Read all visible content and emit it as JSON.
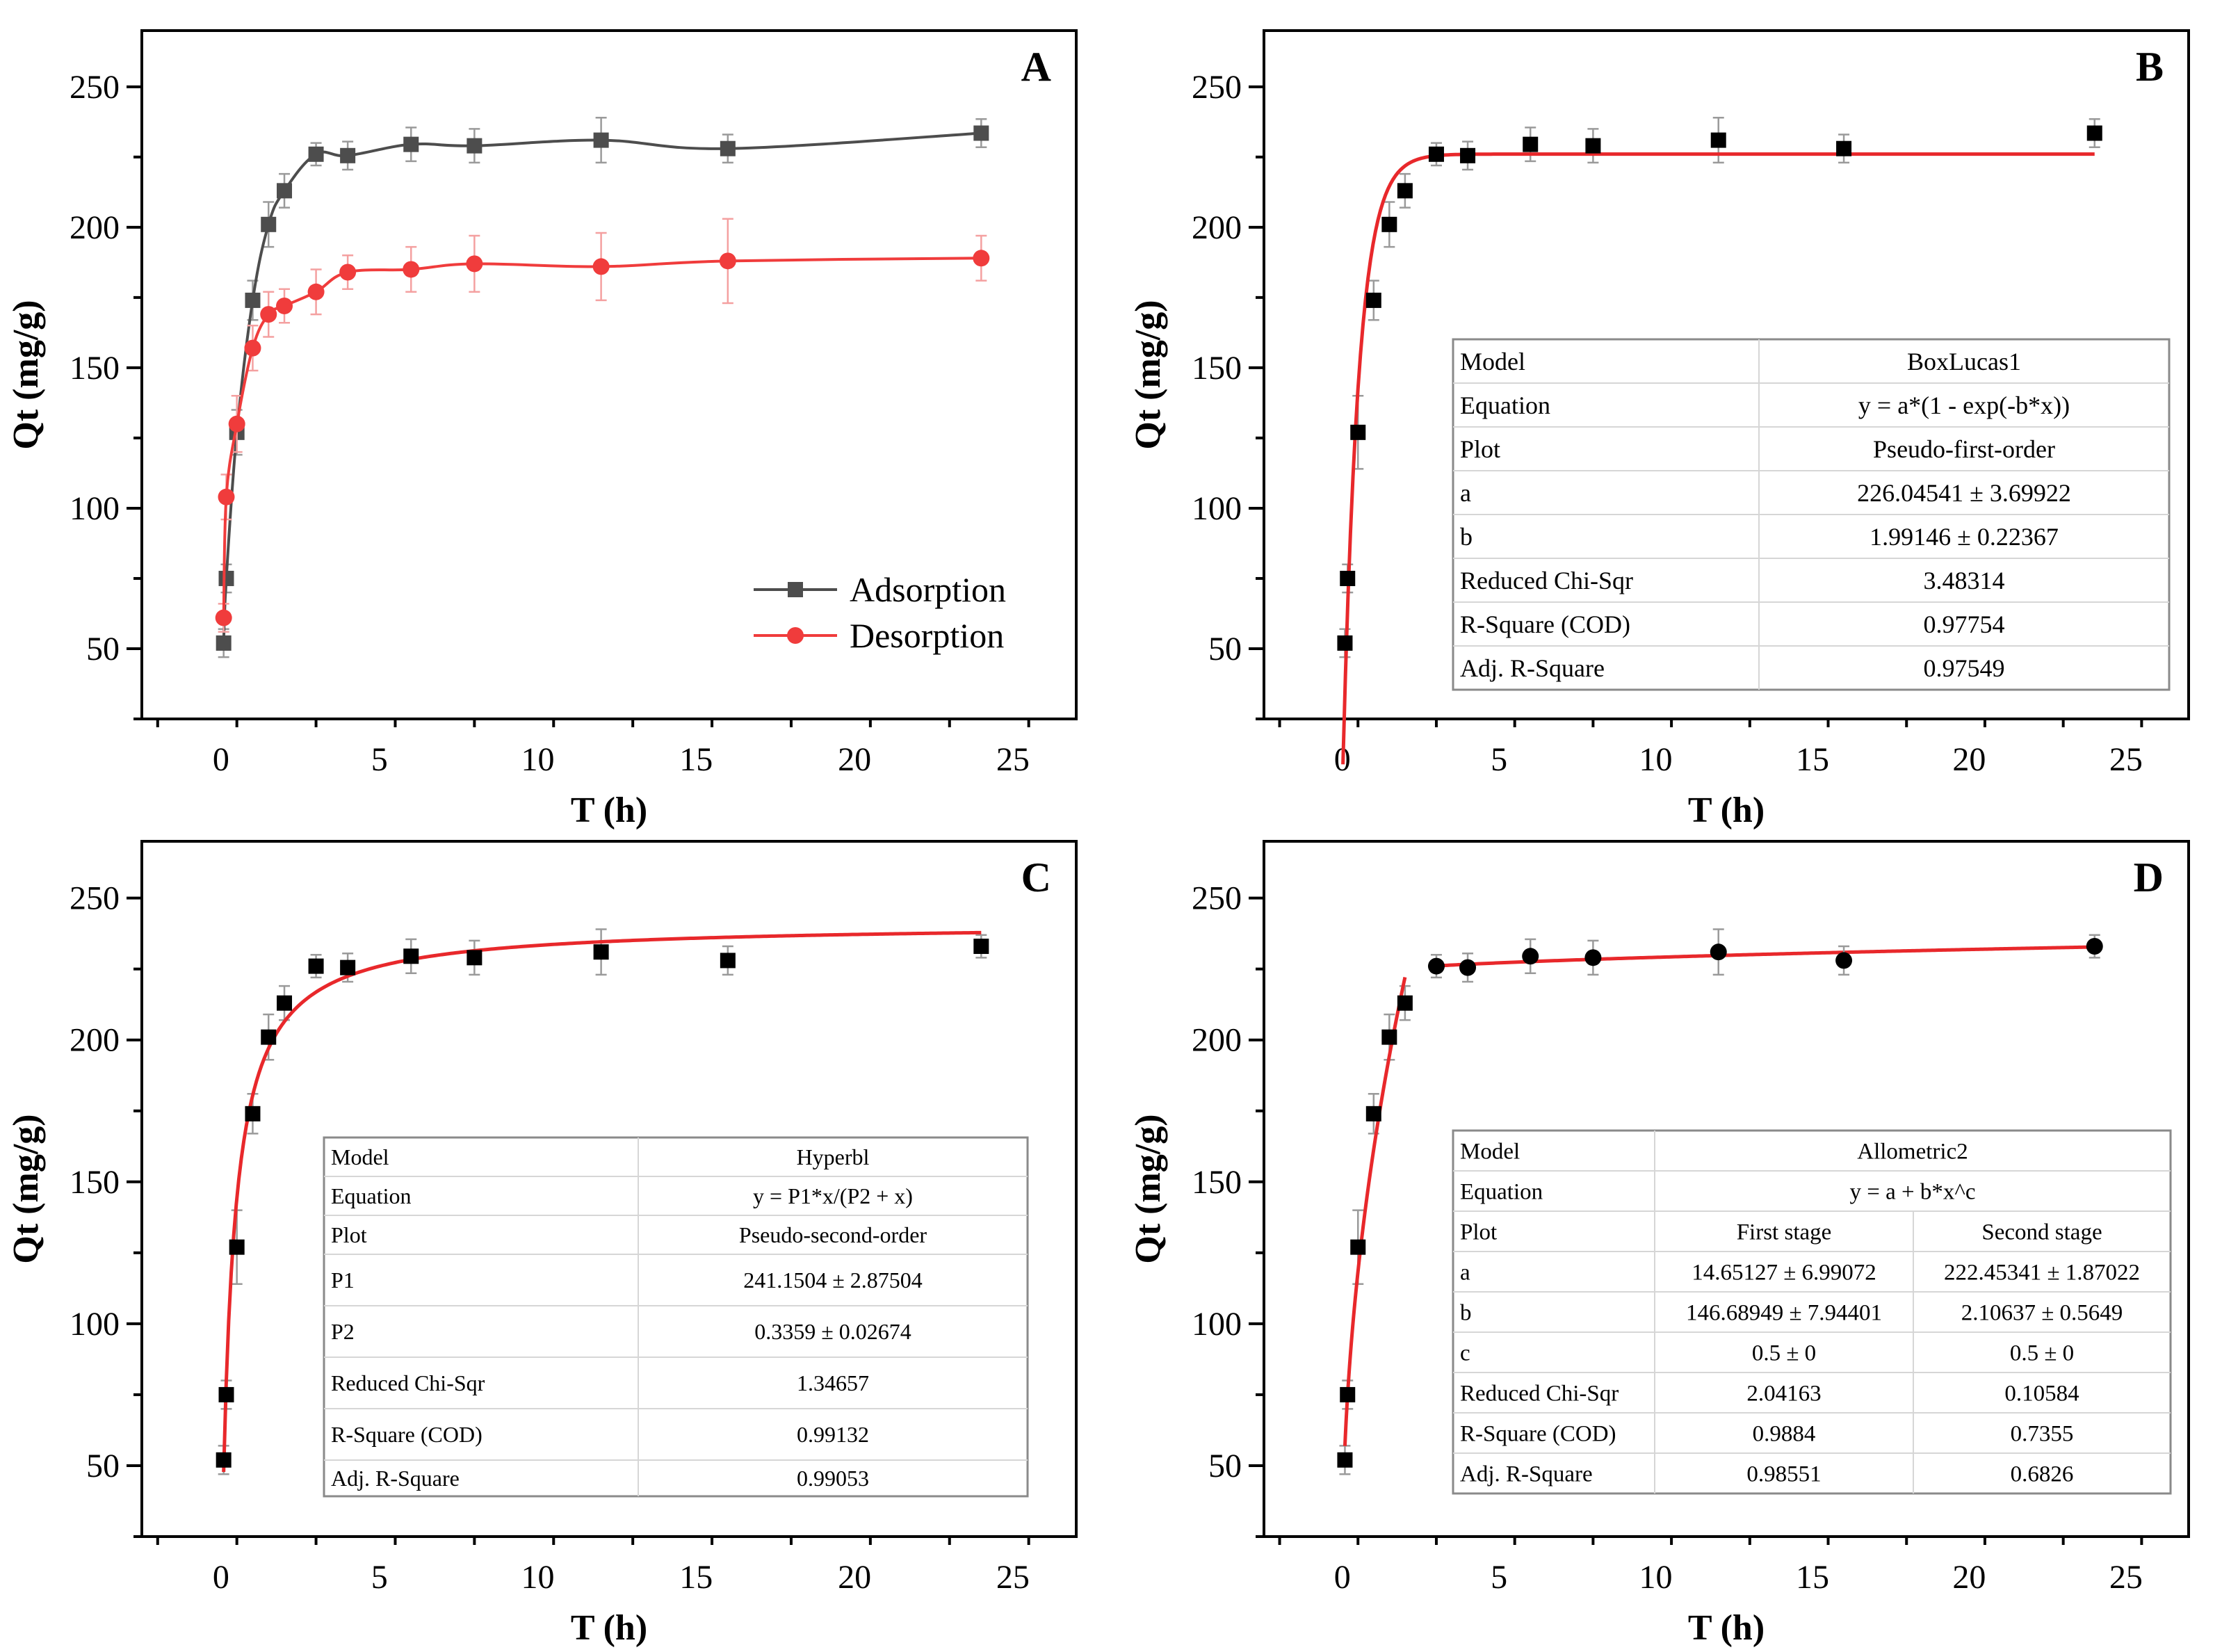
{
  "chart_data": [
    {
      "id": "A",
      "type": "line",
      "panel_label": "A",
      "xlabel": "T (h)",
      "ylabel": "Qt (mg/g)",
      "xlim": [
        -2.5,
        27
      ],
      "ylim": [
        25,
        270
      ],
      "xticks": [
        0,
        5,
        10,
        15,
        20,
        25
      ],
      "yticks": [
        50,
        100,
        150,
        200,
        250
      ],
      "legend_position": "lower-right",
      "series": [
        {
          "name": "Adsorption",
          "color": "#4d4d4d",
          "marker": "square",
          "x": [
            0.083,
            0.167,
            0.5,
            1,
            1.5,
            2,
            3,
            4,
            6,
            8,
            12,
            16,
            24
          ],
          "y": [
            52,
            75,
            127,
            174,
            201,
            213,
            226,
            225.5,
            229.5,
            229,
            231,
            228,
            233.5
          ],
          "err": [
            5,
            5,
            8,
            7,
            8,
            6,
            4,
            5,
            6,
            6,
            8,
            5,
            5
          ]
        },
        {
          "name": "Desorption",
          "color": "#f03c3c",
          "marker": "circle",
          "x": [
            0.083,
            0.167,
            0.5,
            1,
            1.5,
            2,
            3,
            4,
            6,
            8,
            12,
            16,
            24
          ],
          "y": [
            61,
            104,
            130,
            157,
            169,
            172,
            177,
            184,
            185,
            187,
            186,
            188,
            189
          ],
          "err": [
            5,
            8,
            10,
            8,
            8,
            6,
            8,
            6,
            8,
            10,
            12,
            15,
            8
          ]
        }
      ]
    },
    {
      "id": "B",
      "type": "scatter",
      "panel_label": "B",
      "xlabel": "T (h)",
      "ylabel": "Qt (mg/g)",
      "xlim": [
        -2.5,
        27
      ],
      "ylim": [
        25,
        270
      ],
      "xticks": [
        0,
        5,
        10,
        15,
        20,
        25
      ],
      "yticks": [
        50,
        100,
        150,
        200,
        250
      ],
      "points": {
        "x": [
          0.083,
          0.167,
          0.5,
          1,
          1.5,
          2,
          3,
          4,
          6,
          8,
          12,
          16,
          24
        ],
        "y": [
          52,
          75,
          127,
          174,
          201,
          213,
          226,
          225.5,
          229.5,
          229,
          231,
          228,
          233.5
        ],
        "err": [
          5,
          5,
          13,
          7,
          8,
          6,
          4,
          5,
          6,
          6,
          8,
          5,
          5
        ]
      },
      "fit": {
        "model": "boxlucas1",
        "a": 226.04541,
        "b": 1.99146,
        "x_start": 0.02,
        "x_end": 24
      },
      "table": {
        "rows": [
          [
            "Model",
            "BoxLucas1"
          ],
          [
            "Equation",
            "y = a*(1 - exp(-b*x))"
          ],
          [
            "Plot",
            "Pseudo-first-order"
          ],
          [
            "a",
            "226.04541 ± 3.69922"
          ],
          [
            "b",
            "1.99146 ± 0.22367"
          ],
          [
            "Reduced Chi-Sqr",
            "3.48314"
          ],
          [
            "R-Square (COD)",
            "0.97754"
          ],
          [
            "Adj. R-Square",
            "0.97549"
          ]
        ]
      }
    },
    {
      "id": "C",
      "type": "scatter",
      "panel_label": "C",
      "xlabel": "T (h)",
      "ylabel": "Qt (mg/g)",
      "xlim": [
        -2.5,
        27
      ],
      "ylim": [
        25,
        270
      ],
      "xticks": [
        0,
        5,
        10,
        15,
        20,
        25
      ],
      "yticks": [
        50,
        100,
        150,
        200,
        250
      ],
      "points": {
        "x": [
          0.083,
          0.167,
          0.5,
          1,
          1.5,
          2,
          3,
          4,
          6,
          8,
          12,
          16,
          24
        ],
        "y": [
          52,
          75,
          127,
          174,
          201,
          213,
          226,
          225.5,
          229.5,
          229,
          231,
          228,
          233
        ],
        "err": [
          5,
          5,
          13,
          7,
          8,
          6,
          4,
          5,
          6,
          6,
          8,
          5,
          4
        ]
      },
      "fit": {
        "model": "hyperbl",
        "P1": 241.1504,
        "P2": 0.3359,
        "x_start": 0.083,
        "x_end": 24
      },
      "table": {
        "rows": [
          [
            "Model",
            "Hyperbl"
          ],
          [
            "Equation",
            "y = P1*x/(P2 + x)"
          ],
          [
            "Plot",
            "Pseudo-second-order"
          ],
          [
            "P1",
            "241.1504 ± 2.87504"
          ],
          [
            "P2",
            "0.3359 ± 0.02674"
          ],
          [
            "Reduced Chi-Sqr",
            "1.34657"
          ],
          [
            "R-Square (COD)",
            "0.99132"
          ],
          [
            "Adj. R-Square",
            "0.99053"
          ]
        ]
      }
    },
    {
      "id": "D",
      "type": "scatter",
      "panel_label": "D",
      "xlabel": "T (h)",
      "ylabel": "Qt (mg/g)",
      "xlim": [
        -2.5,
        27
      ],
      "ylim": [
        25,
        270
      ],
      "xticks": [
        0,
        5,
        10,
        15,
        20,
        25
      ],
      "yticks": [
        50,
        100,
        150,
        200,
        250
      ],
      "points": {
        "x": [
          0.083,
          0.167,
          0.5,
          1,
          1.5,
          2
        ],
        "y": [
          52,
          75,
          127,
          174,
          201,
          213
        ],
        "err": [
          5,
          5,
          13,
          7,
          8,
          6
        ]
      },
      "points_stage2": {
        "x": [
          3,
          4,
          6,
          8,
          12,
          16,
          24
        ],
        "y": [
          226,
          225.5,
          229.5,
          229,
          231,
          228,
          233
        ],
        "err": [
          4,
          5,
          6,
          6,
          8,
          5,
          4
        ]
      },
      "fits": [
        {
          "model": "allometric2",
          "a": 14.65127,
          "b": 146.68949,
          "c": 0.5,
          "x_start": 0.083,
          "x_end": 2
        },
        {
          "model": "allometric2",
          "a": 222.45341,
          "b": 2.10637,
          "c": 0.5,
          "x_start": 3,
          "x_end": 24
        }
      ],
      "table": {
        "rows": [
          [
            "Model",
            "Allometric2"
          ],
          [
            "Equation",
            "y = a + b*x^c"
          ],
          [
            "Plot",
            "First stage",
            "Second stage"
          ],
          [
            "a",
            "14.65127 ± 6.99072",
            "222.45341 ± 1.87022"
          ],
          [
            "b",
            "146.68949 ± 7.94401",
            "2.10637 ± 0.5649"
          ],
          [
            "c",
            "0.5 ± 0",
            "0.5 ± 0"
          ],
          [
            "Reduced Chi-Sqr",
            "2.04163",
            "0.10584"
          ],
          [
            "R-Square (COD)",
            "0.9884",
            "0.7355"
          ],
          [
            "Adj. R-Square",
            "0.98551",
            "0.6826"
          ]
        ]
      }
    }
  ]
}
